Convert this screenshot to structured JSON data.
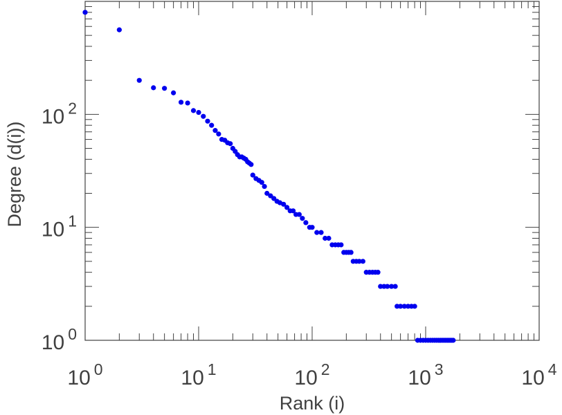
{
  "chart_data": {
    "type": "scatter",
    "xlabel": "Rank (i)",
    "ylabel": "Degree (d(i))",
    "x_scale": "log",
    "y_scale": "log",
    "xlim": [
      1,
      10000
    ],
    "ylim": [
      1,
      1000
    ],
    "x_ticks": [
      {
        "base": "10",
        "exp": "0",
        "value": 1
      },
      {
        "base": "10",
        "exp": "1",
        "value": 10
      },
      {
        "base": "10",
        "exp": "2",
        "value": 100
      },
      {
        "base": "10",
        "exp": "3",
        "value": 1000
      },
      {
        "base": "10",
        "exp": "4",
        "value": 10000
      }
    ],
    "y_ticks": [
      {
        "base": "10",
        "exp": "0",
        "value": 1
      },
      {
        "base": "10",
        "exp": "1",
        "value": 10
      },
      {
        "base": "10",
        "exp": "2",
        "value": 100
      }
    ],
    "grid": false,
    "marker_color": "#0000ee",
    "axis_color": "#404040",
    "series": [
      {
        "points": [
          [
            1,
            800
          ],
          [
            2,
            560
          ],
          [
            3,
            200
          ],
          [
            4,
            172
          ],
          [
            5,
            170
          ],
          [
            6,
            155
          ],
          [
            7,
            128
          ],
          [
            8,
            126
          ],
          [
            9,
            108
          ],
          [
            10,
            104
          ],
          [
            11,
            96
          ],
          [
            12,
            87
          ],
          [
            13,
            80
          ],
          [
            14,
            72
          ],
          [
            15,
            67
          ],
          [
            16,
            60
          ],
          [
            17,
            59
          ],
          [
            18,
            56
          ],
          [
            19,
            55
          ],
          [
            20,
            50
          ],
          [
            21,
            47
          ],
          [
            22,
            44
          ],
          [
            23,
            42
          ],
          [
            24,
            42
          ],
          [
            25,
            41
          ],
          [
            26,
            40
          ],
          [
            27,
            38
          ],
          [
            28,
            37
          ],
          [
            29,
            36
          ],
          [
            30,
            29
          ],
          [
            32,
            27
          ],
          [
            34,
            26
          ],
          [
            36,
            25
          ],
          [
            38,
            23
          ],
          [
            40,
            20
          ],
          [
            43,
            19
          ],
          [
            46,
            18
          ],
          [
            49,
            17
          ],
          [
            52,
            16.5
          ],
          [
            56,
            16
          ],
          [
            60,
            15
          ],
          [
            64,
            14
          ],
          [
            68,
            14
          ],
          [
            72,
            13
          ],
          [
            77,
            13
          ],
          [
            82,
            12
          ],
          [
            88,
            11
          ],
          [
            95,
            10
          ],
          [
            100,
            10
          ],
          [
            110,
            9
          ],
          [
            120,
            9
          ],
          [
            130,
            8
          ],
          [
            140,
            8
          ],
          [
            150,
            7
          ],
          [
            160,
            7
          ],
          [
            170,
            7
          ],
          [
            180,
            7
          ],
          [
            190,
            6
          ],
          [
            200,
            6
          ],
          [
            210,
            6
          ],
          [
            220,
            6
          ],
          [
            230,
            5
          ],
          [
            245,
            5
          ],
          [
            260,
            5
          ],
          [
            280,
            5
          ],
          [
            300,
            4
          ],
          [
            320,
            4
          ],
          [
            340,
            4
          ],
          [
            360,
            4
          ],
          [
            380,
            4
          ],
          [
            400,
            3
          ],
          [
            430,
            3
          ],
          [
            460,
            3
          ],
          [
            500,
            3
          ],
          [
            540,
            3
          ],
          [
            560,
            2
          ],
          [
            600,
            2
          ],
          [
            650,
            2
          ],
          [
            700,
            2
          ],
          [
            750,
            2
          ],
          [
            800,
            2
          ],
          [
            850,
            1
          ],
          [
            900,
            1
          ],
          [
            950,
            1
          ],
          [
            1000,
            1
          ],
          [
            1050,
            1
          ],
          [
            1100,
            1
          ],
          [
            1150,
            1
          ],
          [
            1200,
            1
          ],
          [
            1250,
            1
          ],
          [
            1300,
            1
          ],
          [
            1350,
            1
          ],
          [
            1400,
            1
          ],
          [
            1450,
            1
          ],
          [
            1500,
            1
          ],
          [
            1550,
            1
          ],
          [
            1600,
            1
          ],
          [
            1650,
            1
          ],
          [
            1700,
            1
          ],
          [
            1750,
            1
          ]
        ]
      }
    ]
  }
}
